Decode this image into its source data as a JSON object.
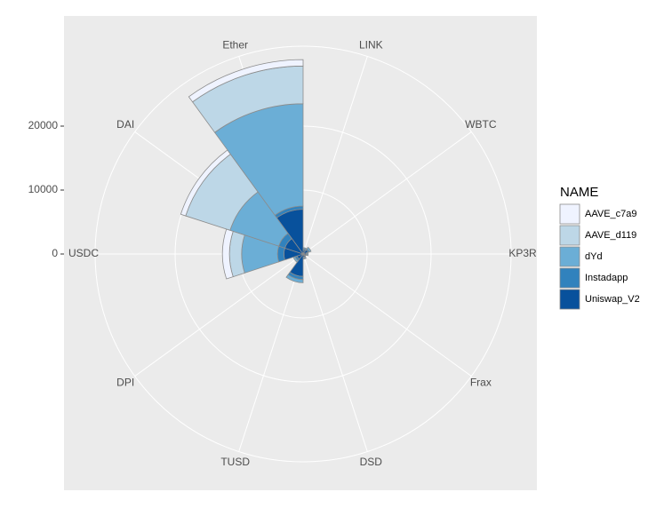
{
  "chart_data": {
    "type": "polar_stacked_bar",
    "categories": [
      "LINK",
      "WBTC",
      "KP3R",
      "Frax",
      "DSD",
      "TUSD",
      "DPI",
      "USDC",
      "DAI",
      "Ether"
    ],
    "series": [
      {
        "name": "AAVE_c7a9",
        "color": "#eff3ff",
        "values": [
          0,
          0,
          0,
          0,
          0,
          0,
          0,
          1100,
          800,
          1000
        ]
      },
      {
        "name": "AAVE_d119",
        "color": "#bdd7e7",
        "values": [
          0,
          0,
          0,
          0,
          0,
          0,
          0,
          1900,
          7300,
          5900
        ]
      },
      {
        "name": "dYd",
        "color": "#6baed6",
        "values": [
          200,
          300,
          200,
          100,
          200,
          500,
          300,
          5600,
          8000,
          16000
        ]
      },
      {
        "name": "Instadapp",
        "color": "#3182bd",
        "values": [
          200,
          200,
          100,
          100,
          100,
          500,
          300,
          1000,
          1000,
          500
        ]
      },
      {
        "name": "Uniswap_V2",
        "color": "#08519c",
        "values": [
          600,
          800,
          500,
          300,
          500,
          3500,
          1000,
          3000,
          3000,
          7000
        ]
      }
    ],
    "ylim": [
      0,
      32500
    ],
    "yticks": [
      0,
      10000,
      20000
    ],
    "legend_title": "NAME",
    "grid": true
  }
}
